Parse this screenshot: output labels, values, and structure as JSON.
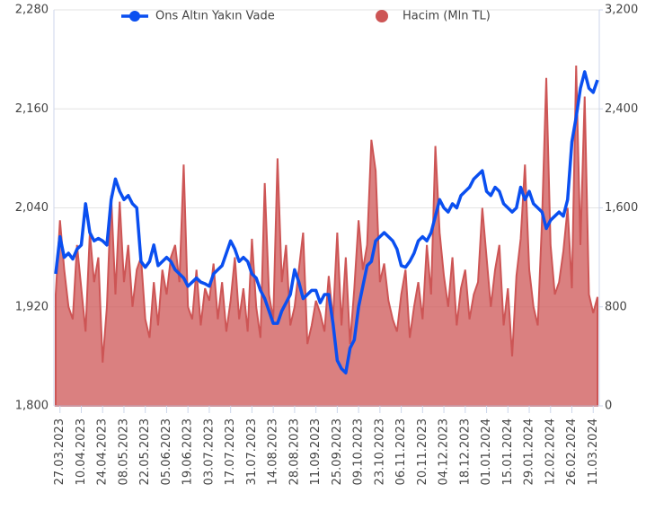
{
  "chart_data": {
    "type": "line-area",
    "categories": [
      null,
      "27.03.2023",
      null,
      null,
      null,
      null,
      "10.04.2023",
      null,
      null,
      null,
      null,
      "24.04.2023",
      null,
      null,
      null,
      null,
      "08.05.2023",
      null,
      null,
      null,
      null,
      "22.05.2023",
      null,
      null,
      null,
      null,
      "05.06.2023",
      null,
      null,
      null,
      null,
      "19.06.2023",
      null,
      null,
      null,
      null,
      "03.07.2023",
      null,
      null,
      null,
      null,
      "17.07.2023",
      null,
      null,
      null,
      null,
      "31.07.2023",
      null,
      null,
      null,
      null,
      "14.08.2023",
      null,
      null,
      null,
      null,
      "28.08.2023",
      null,
      null,
      null,
      null,
      "11.09.2023",
      null,
      null,
      null,
      null,
      "25.09.2023",
      null,
      null,
      null,
      null,
      "09.10.2023",
      null,
      null,
      null,
      null,
      "23.10.2023",
      null,
      null,
      null,
      null,
      "06.11.2023",
      null,
      null,
      null,
      null,
      "20.11.2023",
      null,
      null,
      null,
      null,
      "04.12.2023",
      null,
      null,
      null,
      null,
      "18.12.2023",
      null,
      null,
      null,
      null,
      "01.01.2024",
      null,
      null,
      null,
      null,
      "15.01.2024",
      null,
      null,
      null,
      null,
      "29.01.2024",
      null,
      null,
      null,
      null,
      "12.02.2024",
      null,
      null,
      null,
      null,
      "26.02.2024",
      null,
      null,
      null,
      null,
      "11.03.2024",
      null
    ],
    "series": [
      {
        "name": "Ons Altın Yakın Vade",
        "color": "#0a4ff0",
        "kind": "line",
        "values": [
          1960,
          2005,
          1980,
          1985,
          1978,
          1990,
          1995,
          2045,
          2010,
          2000,
          2003,
          2000,
          1995,
          2050,
          2075,
          2060,
          2050,
          2055,
          2045,
          2040,
          1975,
          1968,
          1975,
          1995,
          1970,
          1975,
          1980,
          1975,
          1965,
          1960,
          1955,
          1945,
          1950,
          1955,
          1950,
          1948,
          1945,
          1960,
          1965,
          1970,
          1985,
          2000,
          1990,
          1975,
          1980,
          1975,
          1960,
          1955,
          1940,
          1930,
          1915,
          1900,
          1900,
          1915,
          1925,
          1935,
          1965,
          1950,
          1930,
          1935,
          1940,
          1940,
          1925,
          1935,
          1935,
          1900,
          1855,
          1845,
          1840,
          1870,
          1880,
          1920,
          1945,
          1970,
          1975,
          2000,
          2005,
          2010,
          2005,
          2000,
          1990,
          1970,
          1968,
          1975,
          1985,
          2000,
          2005,
          2000,
          2010,
          2030,
          2050,
          2040,
          2035,
          2045,
          2040,
          2055,
          2060,
          2065,
          2075,
          2080,
          2085,
          2060,
          2055,
          2065,
          2060,
          2045,
          2040,
          2035,
          2040,
          2065,
          2050,
          2060,
          2045,
          2040,
          2035,
          2015,
          2025,
          2030,
          2035,
          2030,
          2050,
          2120,
          2150,
          2185,
          2205,
          2185,
          2180,
          2195
        ]
      },
      {
        "name": "Hacim (Mln TL)",
        "color": "#cd5555",
        "kind": "area",
        "axis": "y2",
        "values": [
          900,
          1500,
          1100,
          800,
          700,
          1300,
          950,
          600,
          1400,
          1000,
          1200,
          350,
          800,
          1700,
          900,
          1650,
          1000,
          1300,
          800,
          1100,
          1200,
          700,
          550,
          1000,
          650,
          1100,
          900,
          1200,
          1300,
          1000,
          1950,
          800,
          700,
          1100,
          650,
          950,
          850,
          1150,
          700,
          1000,
          600,
          850,
          1200,
          700,
          950,
          600,
          1350,
          800,
          550,
          1800,
          900,
          700,
          2000,
          1000,
          1300,
          650,
          800,
          1100,
          1400,
          500,
          650,
          850,
          750,
          600,
          1050,
          700,
          1400,
          650,
          1200,
          500,
          950,
          1500,
          1100,
          1300,
          2150,
          1900,
          1000,
          1150,
          850,
          700,
          600,
          900,
          1100,
          550,
          800,
          1000,
          700,
          1300,
          900,
          2100,
          1400,
          1050,
          800,
          1200,
          650,
          950,
          1100,
          700,
          900,
          1000,
          1600,
          1200,
          800,
          1100,
          1300,
          650,
          950,
          400,
          1050,
          1350,
          1950,
          1100,
          800,
          650,
          1500,
          2650,
          1300,
          900,
          1000,
          1250,
          1600,
          950,
          2750,
          1300,
          2500,
          900,
          750,
          880
        ]
      }
    ],
    "ylim": [
      1800,
      2280
    ],
    "yticks": [
      {
        "value": 1800,
        "label": "1,800"
      },
      {
        "value": 1920,
        "label": "1,920"
      },
      {
        "value": 2040,
        "label": "2,040"
      },
      {
        "value": 2160,
        "label": "2,160"
      },
      {
        "value": 2280,
        "label": "2,280"
      }
    ],
    "y2lim": [
      0,
      3200
    ],
    "y2ticks": [
      0,
      800,
      {
        "value": 1600,
        "label": "1,600"
      },
      {
        "value": 2400,
        "label": "2,400"
      },
      {
        "value": 3200,
        "label": "3,200"
      }
    ]
  }
}
